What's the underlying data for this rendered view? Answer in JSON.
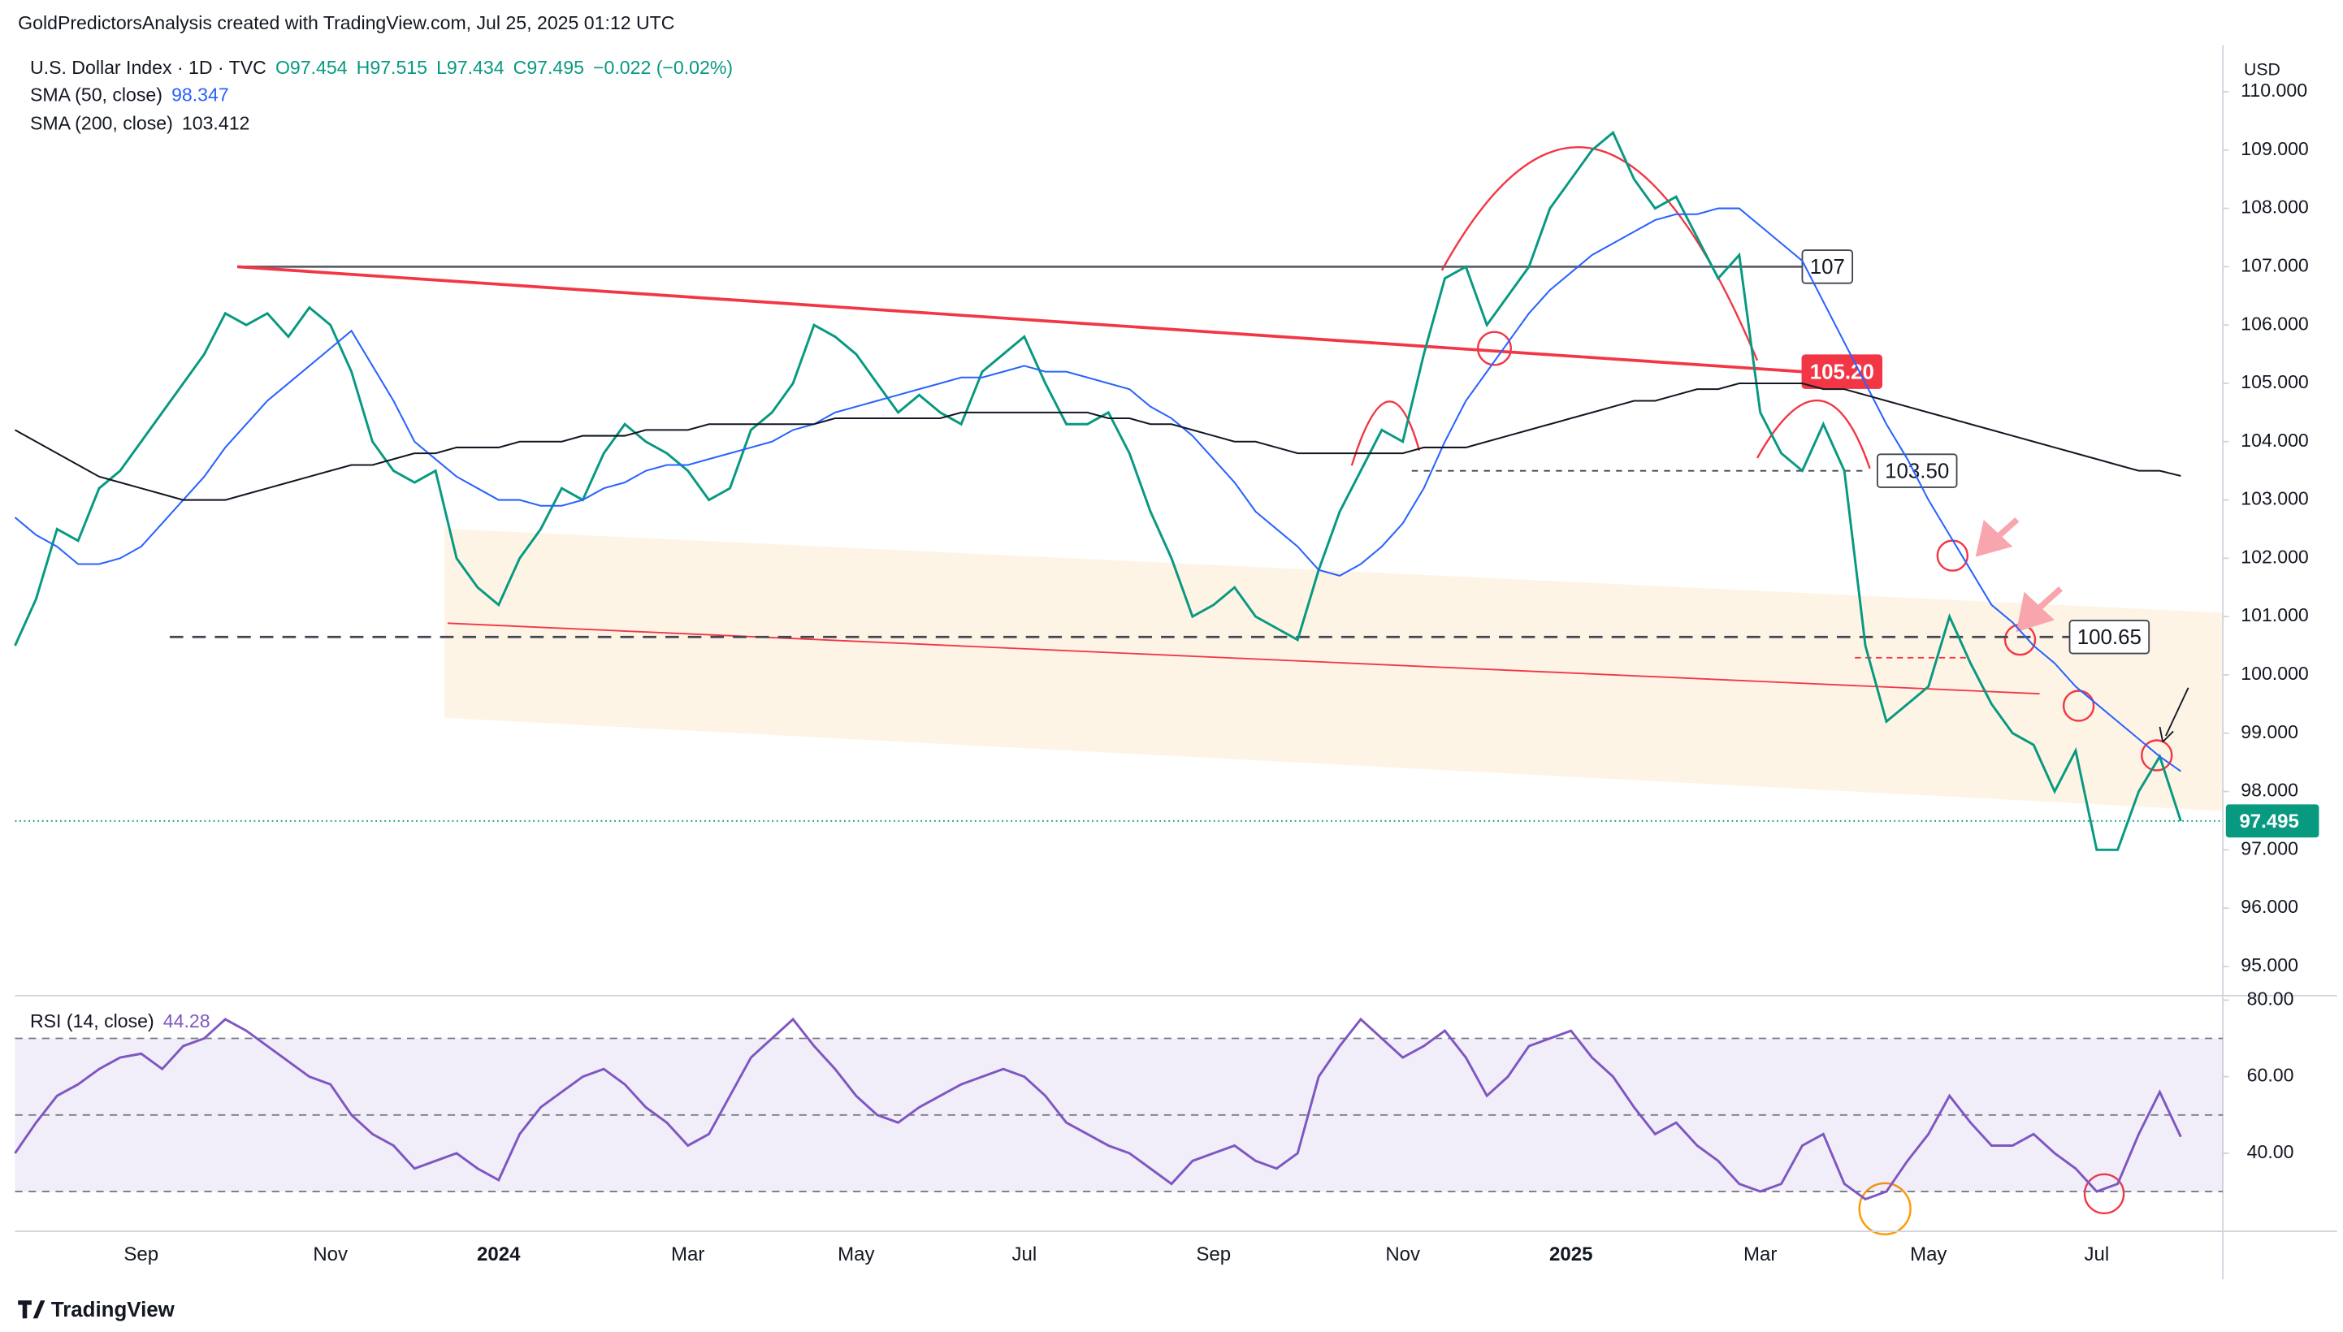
{
  "header": {
    "attribution": "GoldPredictorsAnalysis created with TradingView.com, Jul 25, 2025 01:12 UTC",
    "ohlc": [
      "O97.454",
      "H97.515",
      "L97.434",
      "C97.495",
      "−0.022 (−0.02%)"
    ]
  },
  "footer": {
    "brand": "TradingView"
  },
  "chart_data": [
    {
      "type": "line",
      "y_unit": "USD",
      "categories": [
        null,
        null,
        null,
        null,
        null,
        null,
        "Sep",
        null,
        null,
        null,
        null,
        null,
        null,
        null,
        null,
        "Nov",
        null,
        null,
        null,
        null,
        null,
        null,
        null,
        "2024",
        null,
        null,
        null,
        null,
        null,
        null,
        null,
        null,
        "Mar",
        null,
        null,
        null,
        null,
        null,
        null,
        null,
        "May",
        null,
        null,
        null,
        null,
        null,
        null,
        null,
        "Jul",
        null,
        null,
        null,
        null,
        null,
        null,
        null,
        null,
        "Sep",
        null,
        null,
        null,
        null,
        null,
        null,
        null,
        null,
        "Nov",
        null,
        null,
        null,
        null,
        null,
        null,
        null,
        "2025",
        null,
        null,
        null,
        null,
        null,
        null,
        null,
        null,
        "Mar",
        null,
        null,
        null,
        null,
        null,
        null,
        null,
        "May",
        null,
        null,
        null,
        null,
        null,
        null,
        null,
        "Jul",
        null,
        null,
        null,
        null
      ],
      "series": [
        {
          "name": "U.S. Dollar Index · 1D · TVC",
          "color": "#089981",
          "values": [
            100.5,
            101.3,
            102.5,
            102.3,
            103.2,
            103.5,
            104.0,
            104.5,
            105.0,
            105.5,
            106.2,
            106.0,
            106.2,
            105.8,
            106.3,
            106.0,
            105.2,
            104.0,
            103.5,
            103.3,
            103.5,
            102.0,
            101.5,
            101.2,
            102.0,
            102.5,
            103.2,
            103.0,
            103.8,
            104.3,
            104.0,
            103.8,
            103.5,
            103.0,
            103.2,
            104.2,
            104.5,
            105.0,
            106.0,
            105.8,
            105.5,
            105.0,
            104.5,
            104.8,
            104.5,
            104.3,
            105.2,
            105.5,
            105.8,
            105.0,
            104.3,
            104.3,
            104.5,
            103.8,
            102.8,
            102.0,
            101.0,
            101.2,
            101.5,
            101.0,
            100.8,
            100.6,
            101.8,
            102.8,
            103.5,
            104.2,
            104.0,
            105.5,
            106.8,
            107.0,
            106.0,
            106.5,
            107.0,
            108.0,
            108.5,
            109.0,
            109.3,
            108.5,
            108.0,
            108.2,
            107.5,
            106.8,
            107.2,
            104.5,
            103.8,
            103.5,
            104.3,
            103.5,
            100.5,
            99.2,
            99.5,
            99.8,
            101.0,
            100.2,
            99.5,
            99.0,
            98.8,
            98.0,
            98.7,
            97.0,
            97.0,
            98.0,
            98.6,
            97.495
          ]
        },
        {
          "name": "SMA (50, close)",
          "color": "#2962ff",
          "legend_value": "98.347",
          "values": [
            102.7,
            102.4,
            102.2,
            101.9,
            101.9,
            102.0,
            102.2,
            102.6,
            103.0,
            103.4,
            103.9,
            104.3,
            104.7,
            105.0,
            105.3,
            105.6,
            105.9,
            105.3,
            104.7,
            104.0,
            103.7,
            103.4,
            103.2,
            103.0,
            103.0,
            102.9,
            102.9,
            103.0,
            103.2,
            103.3,
            103.5,
            103.6,
            103.6,
            103.7,
            103.8,
            103.9,
            104.0,
            104.2,
            104.3,
            104.5,
            104.6,
            104.7,
            104.8,
            104.9,
            105.0,
            105.1,
            105.1,
            105.2,
            105.3,
            105.2,
            105.2,
            105.1,
            105.0,
            104.9,
            104.6,
            104.4,
            104.1,
            103.7,
            103.3,
            102.8,
            102.5,
            102.2,
            101.8,
            101.7,
            101.9,
            102.2,
            102.6,
            103.2,
            104.0,
            104.7,
            105.2,
            105.7,
            106.2,
            106.6,
            106.9,
            107.2,
            107.4,
            107.6,
            107.8,
            107.9,
            107.9,
            108.0,
            108.0,
            107.7,
            107.4,
            107.1,
            106.4,
            105.7,
            105.0,
            104.3,
            103.7,
            103.0,
            102.4,
            101.8,
            101.2,
            100.9,
            100.5,
            100.2,
            99.8,
            99.5,
            99.2,
            98.9,
            98.6,
            98.347
          ]
        },
        {
          "name": "SMA (200, close)",
          "color": "#131722",
          "legend_value": "103.412",
          "values": [
            104.2,
            104.0,
            103.8,
            103.6,
            103.4,
            103.3,
            103.2,
            103.1,
            103.0,
            103.0,
            103.0,
            103.1,
            103.2,
            103.3,
            103.4,
            103.5,
            103.6,
            103.6,
            103.7,
            103.8,
            103.8,
            103.9,
            103.9,
            103.9,
            104.0,
            104.0,
            104.0,
            104.1,
            104.1,
            104.1,
            104.2,
            104.2,
            104.2,
            104.3,
            104.3,
            104.3,
            104.3,
            104.3,
            104.3,
            104.4,
            104.4,
            104.4,
            104.4,
            104.4,
            104.4,
            104.5,
            104.5,
            104.5,
            104.5,
            104.5,
            104.5,
            104.5,
            104.4,
            104.4,
            104.3,
            104.3,
            104.2,
            104.1,
            104.0,
            104.0,
            103.9,
            103.8,
            103.8,
            103.8,
            103.8,
            103.8,
            103.8,
            103.9,
            103.9,
            103.9,
            104.0,
            104.1,
            104.2,
            104.3,
            104.4,
            104.5,
            104.6,
            104.7,
            104.7,
            104.8,
            104.9,
            104.9,
            105.0,
            105.0,
            105.0,
            105.0,
            104.9,
            104.9,
            104.8,
            104.7,
            104.6,
            104.5,
            104.4,
            104.3,
            104.2,
            104.1,
            104.0,
            103.9,
            103.8,
            103.7,
            103.6,
            103.5,
            103.5,
            103.412
          ]
        }
      ],
      "ylim": [
        94.5,
        110.8
      ],
      "yticks": [
        {
          "value": 95,
          "label": "95.000"
        },
        {
          "value": 96,
          "label": "96.000"
        },
        {
          "value": 97,
          "label": "97.000"
        },
        {
          "value": 98,
          "label": "98.000"
        },
        {
          "value": 99,
          "label": "99.000"
        },
        {
          "value": 100,
          "label": "100.000"
        },
        {
          "value": 101,
          "label": "101.000"
        },
        {
          "value": 102,
          "label": "102.000"
        },
        {
          "value": 103,
          "label": "103.000"
        },
        {
          "value": 104,
          "label": "104.000"
        },
        {
          "value": 105,
          "label": "105.000"
        },
        {
          "value": 106,
          "label": "106.000"
        },
        {
          "value": 107,
          "label": "107.000"
        },
        {
          "value": 108,
          "label": "108.000"
        },
        {
          "value": 109,
          "label": "109.000"
        },
        {
          "value": 110,
          "label": "110.000"
        }
      ],
      "grid": false,
      "last_price": {
        "value": 97.495,
        "label": "97.495"
      },
      "levels": [
        107,
        {
          "value": 105.2,
          "label": "105.20"
        },
        {
          "value": 103.5,
          "label": "103.50"
        },
        {
          "value": 100.65,
          "label": "100.65"
        }
      ]
    },
    {
      "type": "line",
      "series": [
        {
          "name": "RSI (14, close)",
          "color": "#7e57c2",
          "legend_value": "44.28",
          "values": [
            40,
            48,
            55,
            58,
            62,
            65,
            66,
            62,
            68,
            70,
            75,
            72,
            68,
            64,
            60,
            58,
            50,
            45,
            42,
            36,
            38,
            40,
            36,
            33,
            45,
            52,
            56,
            60,
            62,
            58,
            52,
            48,
            42,
            45,
            55,
            65,
            70,
            75,
            68,
            62,
            55,
            50,
            48,
            52,
            55,
            58,
            60,
            62,
            60,
            55,
            48,
            45,
            42,
            40,
            36,
            32,
            38,
            40,
            42,
            38,
            36,
            40,
            60,
            68,
            75,
            70,
            65,
            68,
            72,
            65,
            55,
            60,
            68,
            70,
            72,
            65,
            60,
            52,
            45,
            48,
            42,
            38,
            32,
            30,
            32,
            42,
            45,
            32,
            28,
            30,
            38,
            45,
            55,
            48,
            42,
            42,
            45,
            40,
            36,
            30,
            32,
            45,
            56,
            44.28
          ]
        }
      ],
      "ylim": [
        19.6,
        80.4
      ],
      "yticks": [
        {
          "value": 40,
          "label": "40.00"
        },
        {
          "value": 60,
          "label": "60.00"
        },
        {
          "value": 80,
          "label": "80.00"
        }
      ],
      "levels": [
        30,
        50,
        70
      ]
    }
  ]
}
